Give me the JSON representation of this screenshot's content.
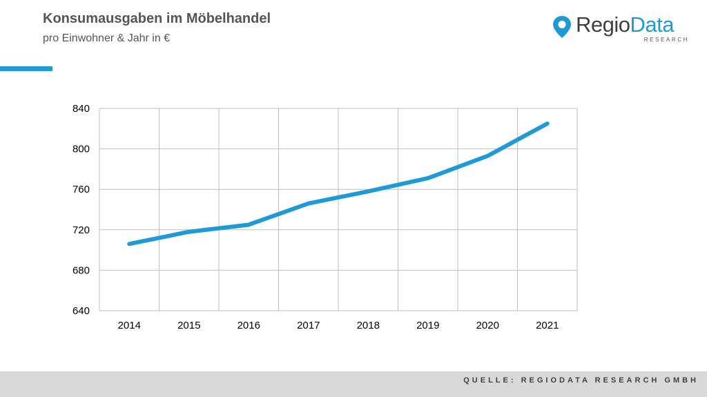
{
  "header": {
    "title": "Konsumausgaben  im Möbelhandel",
    "subtitle": "pro Einwohner & Jahr in €"
  },
  "logo": {
    "text_part1": "Regio",
    "text_part2": "Data",
    "sub": "RESEARCH",
    "icon": "map-pin-icon"
  },
  "footer": {
    "source": "QUELLE: REGIODATA RESEARCH GMBH"
  },
  "colors": {
    "accent": "#1e9ad6",
    "text": "#555555",
    "grid": "#bfbfbf",
    "footer_bg": "#d9d9d9"
  },
  "chart_data": {
    "type": "line",
    "title": "",
    "xlabel": "",
    "ylabel": "",
    "categories": [
      "2014",
      "2015",
      "2016",
      "2017",
      "2018",
      "2019",
      "2020",
      "2021"
    ],
    "series": [
      {
        "values": [
          706,
          718,
          725,
          746,
          758,
          771,
          793,
          825
        ]
      }
    ],
    "ylim": [
      640,
      840
    ],
    "yticks": [
      640,
      680,
      720,
      760,
      800,
      840
    ],
    "grid": true,
    "legend": "none"
  }
}
